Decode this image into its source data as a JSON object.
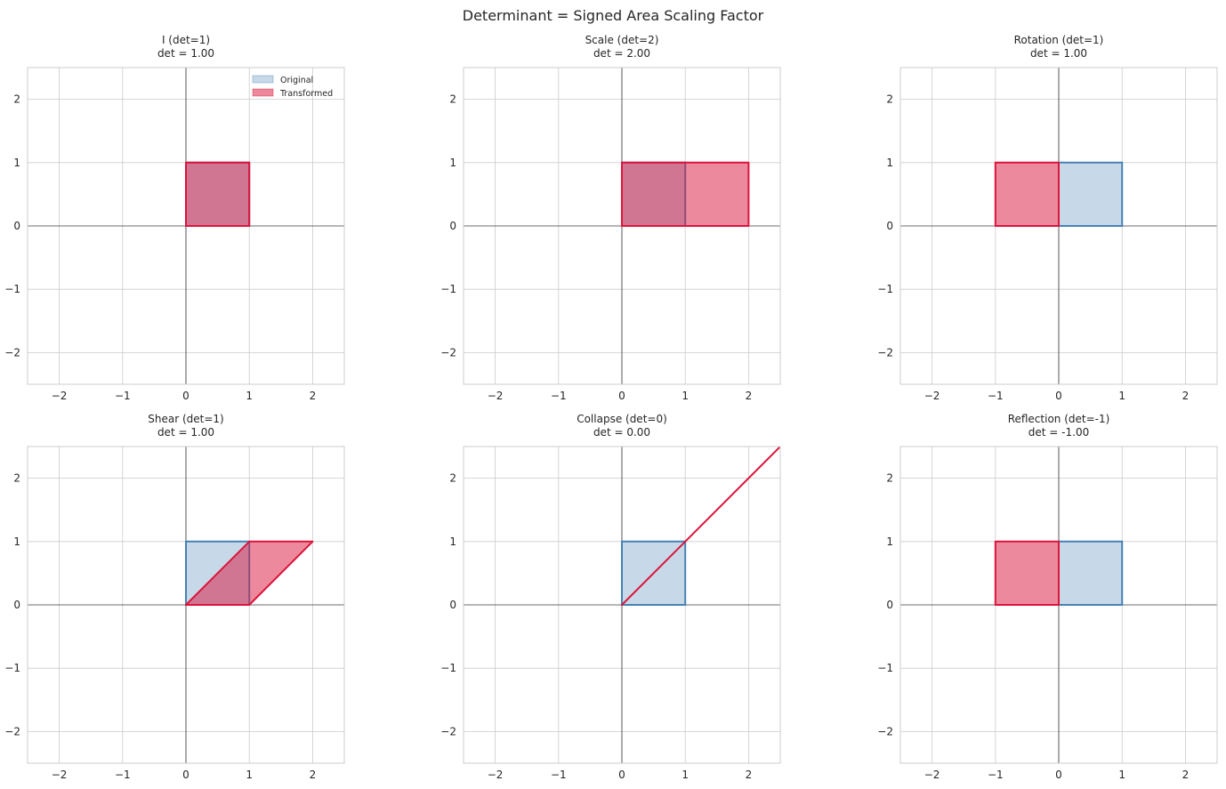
{
  "chart_data": {
    "title": "Determinant = Signed Area Scaling Factor",
    "type": "area",
    "xlim": [
      -2.5,
      2.5
    ],
    "ylim": [
      -2.5,
      2.5
    ],
    "grid": true,
    "ticks": [
      -2,
      -1,
      0,
      1,
      2
    ],
    "colors": {
      "original": "#4682b4",
      "transformed": "#dc143c"
    },
    "legend": {
      "placement": "top-right",
      "entries": [
        "Original",
        "Transformed"
      ]
    },
    "original": [
      [
        0,
        0
      ],
      [
        1,
        0
      ],
      [
        1,
        1
      ],
      [
        0,
        1
      ]
    ],
    "panels": [
      {
        "title": "I (det=1)",
        "subtitle": "det = 1.00",
        "transformed": [
          [
            0,
            0
          ],
          [
            1,
            0
          ],
          [
            1,
            1
          ],
          [
            0,
            1
          ]
        ]
      },
      {
        "title": "Scale (det=2)",
        "subtitle": "det = 2.00",
        "transformed": [
          [
            0,
            0
          ],
          [
            2,
            0
          ],
          [
            2,
            1
          ],
          [
            0,
            1
          ]
        ]
      },
      {
        "title": "Rotation (det=1)",
        "subtitle": "det = 1.00",
        "transformed": [
          [
            0,
            0
          ],
          [
            0,
            1
          ],
          [
            -1,
            1
          ],
          [
            -1,
            0
          ]
        ]
      },
      {
        "title": "Shear (det=1)",
        "subtitle": "det = 1.00",
        "transformed": [
          [
            0,
            0
          ],
          [
            1,
            0
          ],
          [
            2,
            1
          ],
          [
            1,
            1
          ]
        ]
      },
      {
        "title": "Collapse (det=0)",
        "subtitle": "det = 0.00",
        "transformed": [
          [
            0,
            0
          ],
          [
            1,
            1
          ],
          [
            3,
            3
          ],
          [
            2,
            2
          ]
        ]
      },
      {
        "title": "Reflection (det=-1)",
        "subtitle": "det = -1.00",
        "transformed": [
          [
            0,
            0
          ],
          [
            -1,
            0
          ],
          [
            -1,
            1
          ],
          [
            0,
            1
          ]
        ]
      }
    ]
  }
}
